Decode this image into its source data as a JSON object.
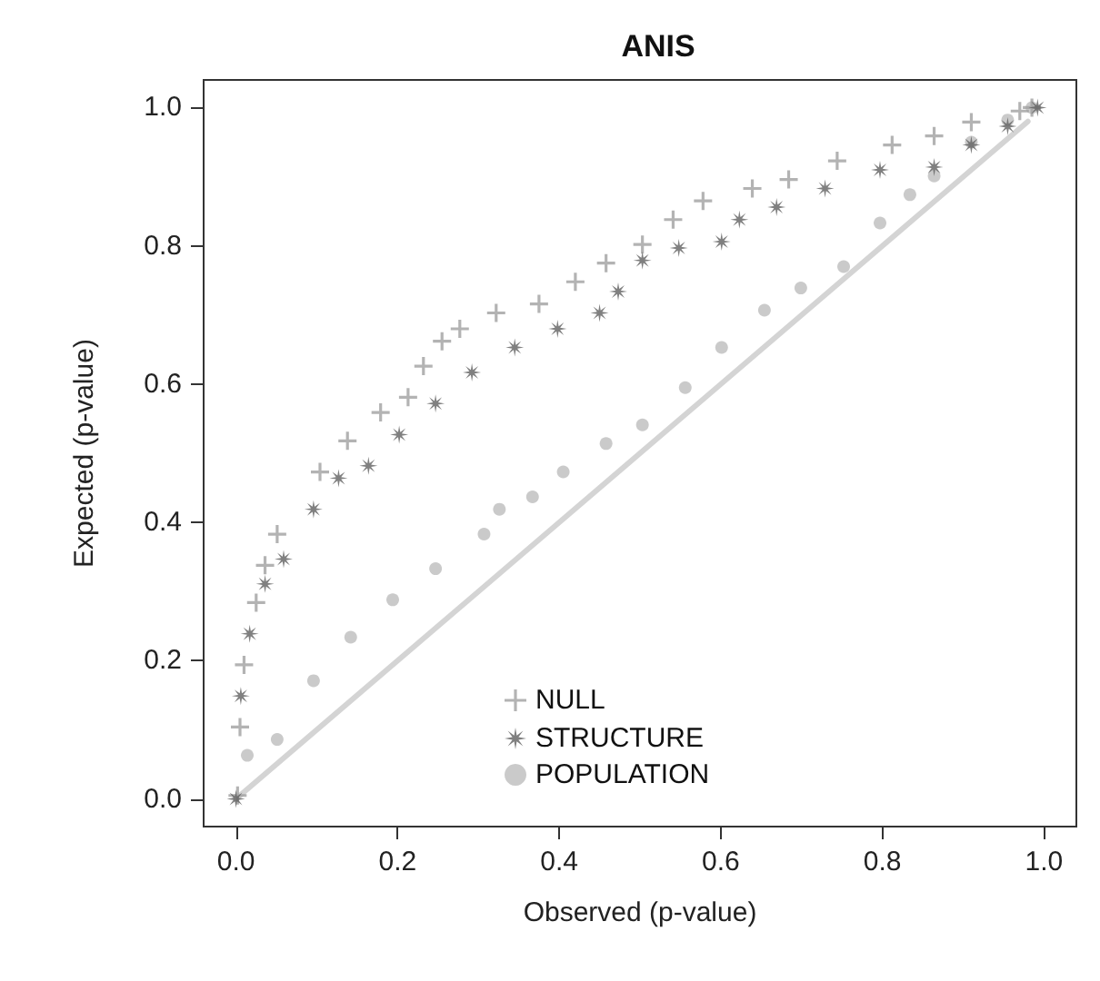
{
  "chart_data": {
    "type": "scatter",
    "title": "ANIS",
    "xlabel": "Observed (p-value)",
    "ylabel": "Expected (p-value)",
    "xlim": [
      -0.04,
      1.04
    ],
    "ylim": [
      -0.04,
      1.04
    ],
    "xticks": [
      {
        "value": 0,
        "label": "0.0"
      },
      {
        "value": 0.2,
        "label": "0.2"
      },
      {
        "value": 0.4,
        "label": "0.4"
      },
      {
        "value": 0.6,
        "label": "0.6"
      },
      {
        "value": 0.8,
        "label": "0.8"
      },
      {
        "value": 1,
        "label": "1.0"
      }
    ],
    "yticks": [
      {
        "value": 0,
        "label": "0.0"
      },
      {
        "value": 0.2,
        "label": "0.2"
      },
      {
        "value": 0.4,
        "label": "0.4"
      },
      {
        "value": 0.6,
        "label": "0.6"
      },
      {
        "value": 0.8,
        "label": "0.8"
      },
      {
        "value": 1,
        "label": "1.0"
      }
    ],
    "grid": false,
    "legend": "bottom",
    "series": [
      {
        "type": "line",
        "color": "#d4d4d4",
        "marker": "none",
        "line_style": "solid",
        "x": [
          0,
          0.98
        ],
        "values": [
          0,
          0.98
        ]
      },
      {
        "name": "NULL",
        "color": "#a0a0a0",
        "marker": "cross",
        "x": [
          0.002,
          0.005,
          0.01,
          0.025,
          0.036,
          0.051,
          0.104,
          0.138,
          0.179,
          0.213,
          0.232,
          0.255,
          0.277,
          0.322,
          0.375,
          0.42,
          0.458,
          0.503,
          0.541,
          0.578,
          0.639,
          0.684,
          0.744,
          0.812,
          0.864,
          0.91,
          0.97,
          0.985
        ],
        "values": [
          0.005,
          0.104,
          0.194,
          0.284,
          0.338,
          0.383,
          0.473,
          0.518,
          0.559,
          0.581,
          0.626,
          0.662,
          0.68,
          0.703,
          0.716,
          0.748,
          0.775,
          0.802,
          0.838,
          0.865,
          0.883,
          0.896,
          0.923,
          0.946,
          0.959,
          0.979,
          0.995,
          1.0
        ]
      },
      {
        "name": "STRUCTURE",
        "color": "#606060",
        "marker": "star",
        "x": [
          0,
          0.006,
          0.017,
          0.036,
          0.059,
          0.096,
          0.127,
          0.164,
          0.202,
          0.247,
          0.292,
          0.345,
          0.398,
          0.45,
          0.473,
          0.503,
          0.548,
          0.601,
          0.623,
          0.669,
          0.729,
          0.797,
          0.864,
          0.91,
          0.955,
          0.992
        ],
        "values": [
          0,
          0.149,
          0.239,
          0.311,
          0.347,
          0.419,
          0.464,
          0.482,
          0.527,
          0.572,
          0.617,
          0.653,
          0.68,
          0.703,
          0.734,
          0.779,
          0.797,
          0.806,
          0.838,
          0.856,
          0.883,
          0.91,
          0.914,
          0.946,
          0.973,
          1.0
        ]
      },
      {
        "name": "POPULATION",
        "color": "#bdbdbd",
        "marker": "circle",
        "x": [
          0.014,
          0.051,
          0.096,
          0.142,
          0.194,
          0.247,
          0.307,
          0.326,
          0.367,
          0.405,
          0.458,
          0.503,
          0.556,
          0.601,
          0.654,
          0.699,
          0.752,
          0.797,
          0.834,
          0.864,
          0.91,
          0.955,
          0.985
        ],
        "values": [
          0.063,
          0.086,
          0.171,
          0.234,
          0.288,
          0.333,
          0.383,
          0.419,
          0.437,
          0.473,
          0.514,
          0.541,
          0.595,
          0.653,
          0.707,
          0.739,
          0.77,
          0.833,
          0.874,
          0.901,
          0.95,
          0.982,
          1.0
        ]
      }
    ]
  }
}
